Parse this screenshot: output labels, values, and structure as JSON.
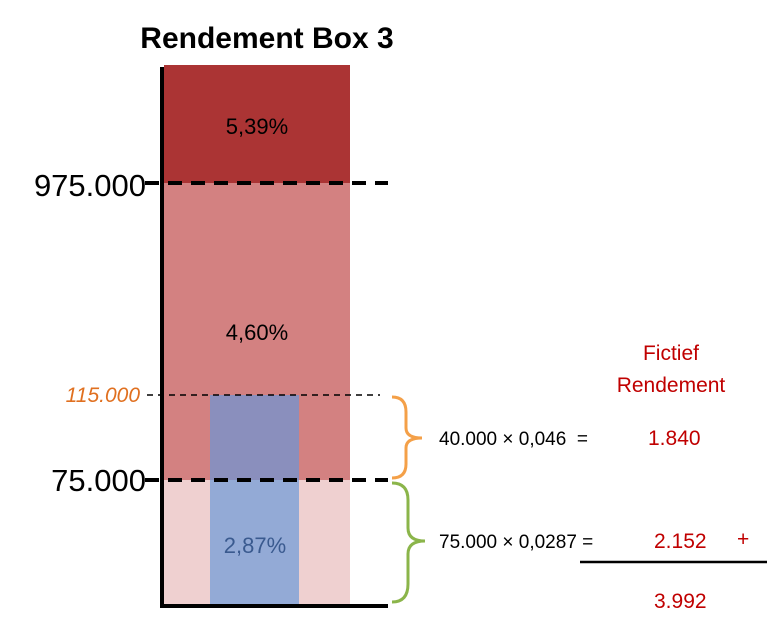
{
  "title": "Rendement Box 3",
  "tiers": [
    {
      "rate": "5,39%",
      "color": "#ab3434"
    },
    {
      "rate": "4,60%",
      "color": "#d38181"
    },
    {
      "rate": "2,87%",
      "color": "#efd0d0"
    }
  ],
  "overlay": {
    "color": "#8a8fbd",
    "lower_color": "#93aad6",
    "text_color": "#3a5a8f"
  },
  "thresholds": {
    "high": "975.000",
    "mid": "115.000",
    "low": "75.000"
  },
  "side_heading": {
    "line1": "Fictief",
    "line2": "Rendement"
  },
  "calculations": [
    {
      "expression": "40.000 × 0,046  =",
      "result": "1.840"
    },
    {
      "expression": "75.000 × 0,0287 =",
      "result": "2.152",
      "operator": "+"
    }
  ],
  "total": "3.992",
  "colors": {
    "accent_red": "#c00000",
    "accent_orange": "#e07020",
    "brace_orange": "#f4a048",
    "brace_green": "#8bb54a"
  }
}
